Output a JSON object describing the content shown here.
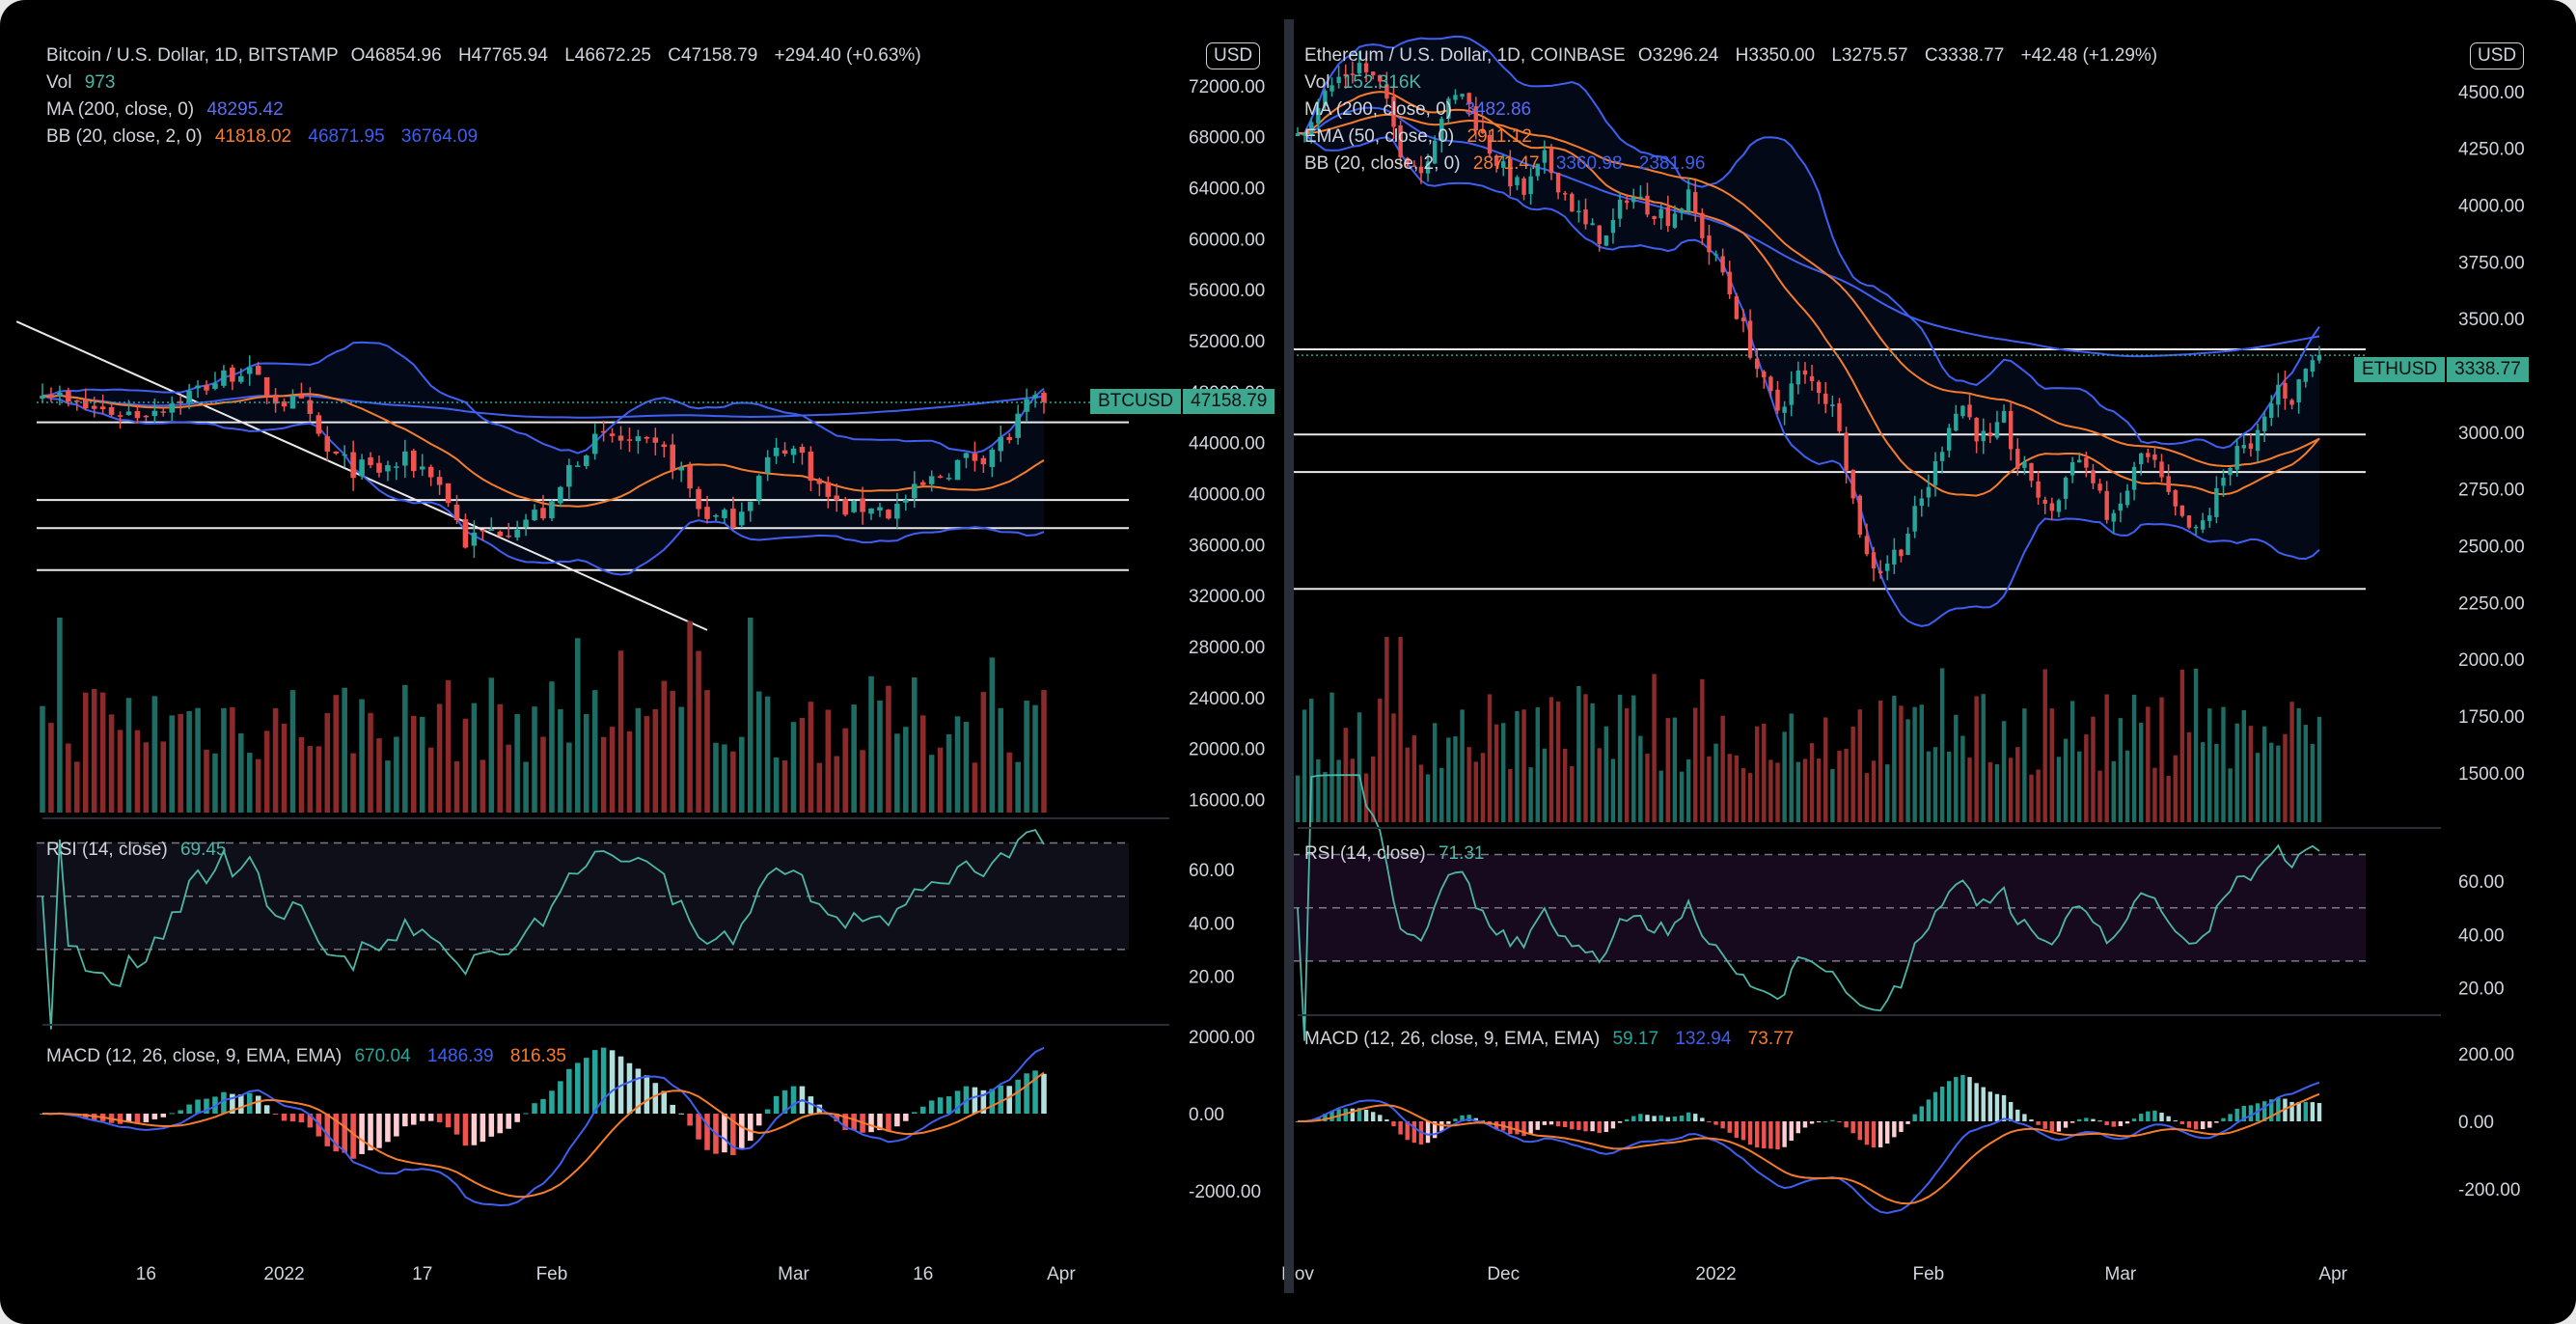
{
  "chart_data": [
    {
      "type": "candlestick",
      "title": "Bitcoin / U.S. Dollar, 1D, BITSTAMP",
      "ohlc": {
        "O": "O46854.96",
        "H": "H47765.94",
        "L": "L46672.25",
        "C": "C47158.79",
        "change": "+294.40 (+0.63%)"
      },
      "currency": "USD",
      "symbol_tag": "BTCUSD",
      "last_price": "47158.79",
      "last_value": 47158.79,
      "indicators": {
        "vol": {
          "label": "Vol",
          "value": "973"
        },
        "ma": {
          "label": "MA (200, close, 0)",
          "value": "48295.42"
        },
        "bb": {
          "label": "BB (20, close, 2, 0)",
          "basis": "41818.02",
          "upper": "46871.95",
          "lower": "36764.09"
        },
        "rsi": {
          "label": "RSI (14, close)",
          "value": "69.45"
        },
        "macd": {
          "label": "MACD (12, 26, close, 9, EMA, EMA)",
          "hist": "670.04",
          "macd": "1486.39",
          "signal": "816.35"
        }
      },
      "price_ticks": [
        "72000.00",
        "68000.00",
        "64000.00",
        "60000.00",
        "56000.00",
        "52000.00",
        "48000.00",
        "44000.00",
        "40000.00",
        "36000.00",
        "32000.00",
        "28000.00",
        "24000.00",
        "20000.00",
        "16000.00"
      ],
      "price_tick_values": [
        72000,
        68000,
        64000,
        60000,
        56000,
        52000,
        48000,
        44000,
        40000,
        36000,
        32000,
        28000,
        24000,
        20000,
        16000
      ],
      "rsi_ticks": [
        "60.00",
        "40.00",
        "20.00"
      ],
      "rsi_tick_values": [
        60,
        40,
        20
      ],
      "macd_ticks": [
        "2000.00",
        "0.00",
        "-2000.00"
      ],
      "macd_tick_values": [
        2000,
        0,
        -2000
      ],
      "x_ticks": [
        "16",
        "2022",
        "17",
        "Feb",
        "Mar",
        "16",
        "Apr"
      ],
      "x_tick_days": [
        15,
        31,
        47,
        62,
        90,
        105,
        121
      ],
      "day_range": [
        3,
        119
      ],
      "ylim": [
        14000,
        76000
      ],
      "horizontal_levels": [
        45600,
        39500,
        37300,
        34000
      ],
      "trendline": {
        "start": [
          0,
          53500
        ],
        "end": [
          80,
          29300
        ]
      },
      "keypoints": [
        [
          3,
          48500
        ],
        [
          6,
          47000
        ],
        [
          10,
          46500
        ],
        [
          14,
          46300
        ],
        [
          18,
          47200
        ],
        [
          22,
          48500
        ],
        [
          26,
          49800
        ],
        [
          30,
          47500
        ],
        [
          33,
          46800
        ],
        [
          36,
          43200
        ],
        [
          39,
          42000
        ],
        [
          42,
          41800
        ],
        [
          45,
          42500
        ],
        [
          48,
          41800
        ],
        [
          50,
          39500
        ],
        [
          52,
          36200
        ],
        [
          54,
          36800
        ],
        [
          57,
          37500
        ],
        [
          60,
          38300
        ],
        [
          62,
          38700
        ],
        [
          64,
          42000
        ],
        [
          66,
          43800
        ],
        [
          69,
          44400
        ],
        [
          72,
          43700
        ],
        [
          75,
          43200
        ],
        [
          77,
          41700
        ],
        [
          79,
          38900
        ],
        [
          81,
          38000
        ],
        [
          83,
          38100
        ],
        [
          85,
          40000
        ],
        [
          87,
          42500
        ],
        [
          89,
          43800
        ],
        [
          91,
          43000
        ],
        [
          93,
          40500
        ],
        [
          95,
          39000
        ],
        [
          97,
          38700
        ],
        [
          99,
          39200
        ],
        [
          101,
          38500
        ],
        [
          103,
          39500
        ],
        [
          106,
          41000
        ],
        [
          109,
          42400
        ],
        [
          112,
          43100
        ],
        [
          115,
          44500
        ],
        [
          117,
          46800
        ],
        [
          119,
          47158
        ]
      ]
    },
    {
      "type": "candlestick",
      "title": "Ethereum / U.S. Dollar, 1D, COINBASE",
      "ohlc": {
        "O": "O3296.24",
        "H": "H3350.00",
        "L": "L3275.57",
        "C": "C3338.77",
        "change": "+42.48 (+1.29%)"
      },
      "currency": "USD",
      "symbol_tag": "ETHUSD",
      "last_price": "3338.77",
      "last_value": 3338.77,
      "indicators": {
        "vol": {
          "label": "Vol",
          "value": "152.316K"
        },
        "ma": {
          "label": "MA (200, close, 0)",
          "value": "3482.86"
        },
        "ema": {
          "label": "EMA (50, close, 0)",
          "value": "2911.12"
        },
        "bb": {
          "label": "BB (20, close, 2, 0)",
          "basis": "2871.47",
          "upper": "3360.98",
          "lower": "2381.96"
        },
        "rsi": {
          "label": "RSI (14, close)",
          "value": "71.31"
        },
        "macd": {
          "label": "MACD (12, 26, close, 9, EMA, EMA)",
          "hist": "59.17",
          "macd": "132.94",
          "signal": "73.77"
        }
      },
      "price_ticks": [
        "4500.00",
        "4250.00",
        "4000.00",
        "3750.00",
        "3500.00",
        "3250.00",
        "3000.00",
        "2750.00",
        "2500.00",
        "2250.00",
        "2000.00",
        "1750.00",
        "1500.00"
      ],
      "price_tick_values": [
        4500,
        4250,
        4000,
        3750,
        3500,
        3250,
        3000,
        2750,
        2500,
        2250,
        2000,
        1750,
        1500
      ],
      "rsi_ticks": [
        "60.00",
        "40.00",
        "20.00"
      ],
      "rsi_tick_values": [
        60,
        40,
        20
      ],
      "macd_ticks": [
        "200.00",
        "0.00",
        "-200.00"
      ],
      "macd_tick_values": [
        200,
        0,
        -200
      ],
      "x_ticks": [
        "Nov",
        "Dec",
        "2022",
        "Feb",
        "Mar",
        "Apr"
      ],
      "x_tick_days": [
        0,
        30,
        61,
        92,
        120,
        151
      ],
      "day_range": [
        0,
        149
      ],
      "ylim": [
        1300,
        4750
      ],
      "horizontal_levels": [
        3365,
        2990,
        2825,
        2310
      ],
      "keypoints": [
        [
          0,
          4300
        ],
        [
          3,
          4450
        ],
        [
          6,
          4560
        ],
        [
          9,
          4620
        ],
        [
          12,
          4520
        ],
        [
          15,
          4250
        ],
        [
          18,
          4150
        ],
        [
          21,
          4400
        ],
        [
          24,
          4500
        ],
        [
          27,
          4300
        ],
        [
          30,
          4150
        ],
        [
          33,
          4050
        ],
        [
          36,
          4200
        ],
        [
          39,
          4050
        ],
        [
          42,
          3900
        ],
        [
          45,
          3850
        ],
        [
          48,
          4050
        ],
        [
          51,
          4000
        ],
        [
          54,
          3950
        ],
        [
          57,
          4030
        ],
        [
          60,
          3800
        ],
        [
          62,
          3700
        ],
        [
          65,
          3450
        ],
        [
          68,
          3200
        ],
        [
          70,
          3100
        ],
        [
          73,
          3250
        ],
        [
          76,
          3200
        ],
        [
          79,
          3050
        ],
        [
          81,
          2700
        ],
        [
          83,
          2450
        ],
        [
          85,
          2400
        ],
        [
          88,
          2500
        ],
        [
          91,
          2700
        ],
        [
          93,
          2850
        ],
        [
          95,
          3050
        ],
        [
          97,
          3120
        ],
        [
          99,
          3000
        ],
        [
          101,
          2950
        ],
        [
          103,
          3050
        ],
        [
          105,
          2850
        ],
        [
          107,
          2800
        ],
        [
          109,
          2650
        ],
        [
          111,
          2700
        ],
        [
          113,
          2900
        ],
        [
          115,
          2850
        ],
        [
          117,
          2700
        ],
        [
          119,
          2600
        ],
        [
          121,
          2750
        ],
        [
          123,
          2900
        ],
        [
          125,
          2850
        ],
        [
          127,
          2700
        ],
        [
          129,
          2600
        ],
        [
          131,
          2550
        ],
        [
          133,
          2650
        ],
        [
          135,
          2800
        ],
        [
          137,
          2950
        ],
        [
          139,
          2900
        ],
        [
          141,
          3050
        ],
        [
          143,
          3200
        ],
        [
          145,
          3150
        ],
        [
          147,
          3280
        ],
        [
          149,
          3338
        ]
      ]
    }
  ]
}
